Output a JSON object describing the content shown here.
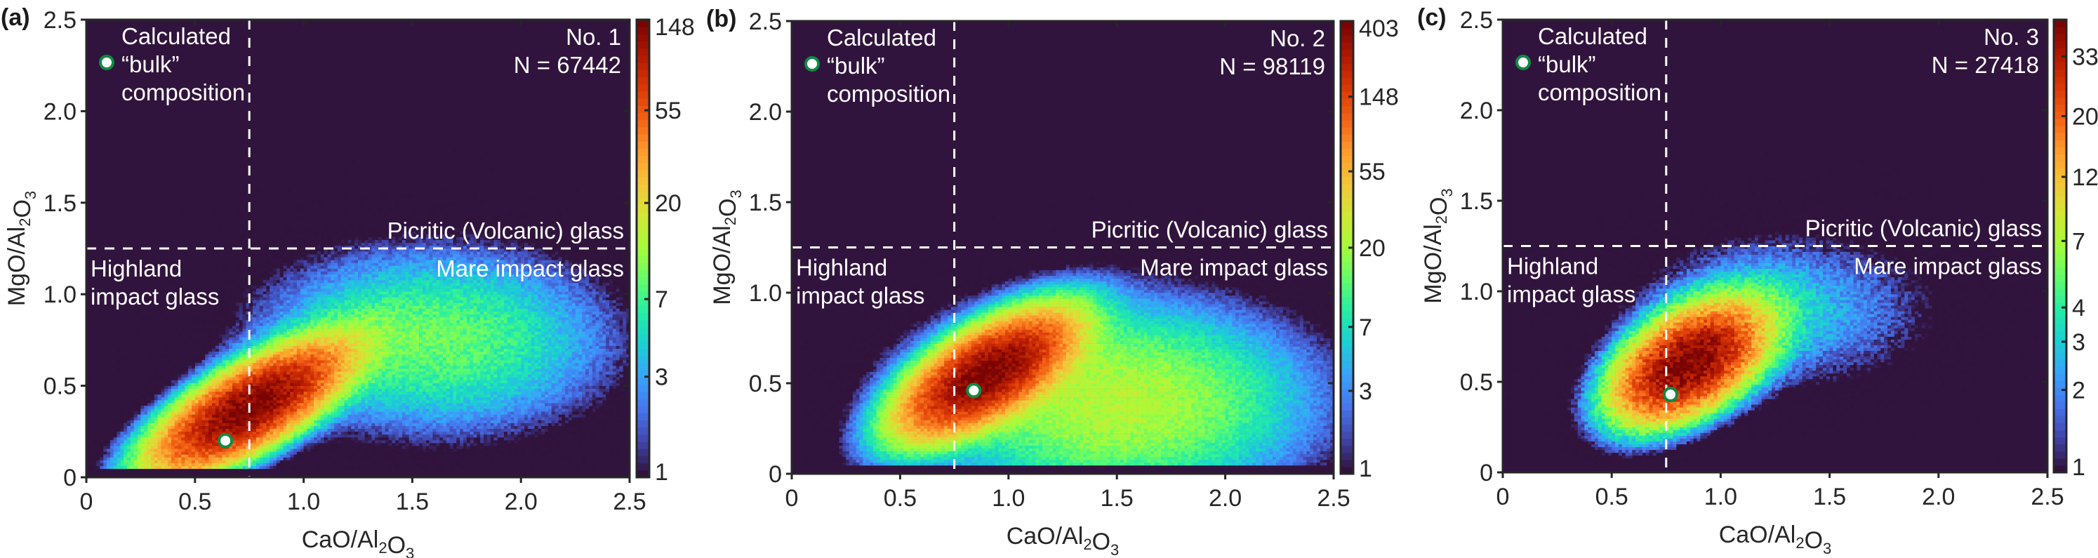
{
  "figure": {
    "background_color": "#ffffff",
    "plot_background_color": "#31143d",
    "marker_fill": "#ffffff",
    "marker_edge": "#118a43",
    "divider_color": "#ffffff",
    "colormap": [
      "#30123b",
      "#4145ab",
      "#4675ed",
      "#39a2fc",
      "#1bcfd4",
      "#24eca6",
      "#61fc6c",
      "#a4fc3b",
      "#d1e834",
      "#f3c63a",
      "#fe9b2d",
      "#f36315",
      "#d93806",
      "#b11901",
      "#7a0403"
    ]
  },
  "chart_data": [
    {
      "type": "heatmap",
      "panel_label": "(a)",
      "title": "",
      "xlabel": "CaO/Al2O3",
      "ylabel": "MgO/Al2O3",
      "xlim": [
        0,
        2.5
      ],
      "ylim": [
        0,
        2.5
      ],
      "xticks": [
        0,
        0.5,
        1.0,
        1.5,
        2.0,
        2.5
      ],
      "xtick_labels": [
        "0",
        "0.5",
        "1.0",
        "1.5",
        "2.0",
        "2.5"
      ],
      "yticks": [
        0,
        0.5,
        1.0,
        1.5,
        2.0,
        2.5
      ],
      "ytick_labels": [
        "0",
        "0.5",
        "1.0",
        "1.5",
        "2.0",
        "2.5"
      ],
      "grid": false,
      "colorbar": {
        "scale": "log",
        "range": [
          1,
          148
        ],
        "ticks": [
          148,
          55,
          20,
          7,
          3,
          1
        ],
        "tick_labels": [
          "148",
          "55",
          "20",
          "7",
          "3",
          "1"
        ]
      },
      "annotations": {
        "sample": "No. 1",
        "count": "N = 67442",
        "bulk_lines": [
          "Calculated",
          "“bulk”",
          "composition"
        ],
        "picritic": "Picritic (Volcanic) glass",
        "mare": "Mare impact glass",
        "highland_lines": [
          "Highland",
          "impact glass"
        ]
      },
      "divider_x": 0.75,
      "divider_y": 1.25,
      "bulk_composition": {
        "x": 0.64,
        "y": 0.2
      },
      "density_peak": {
        "x": 0.75,
        "y": 0.38,
        "max_count": 148
      },
      "density_shape": {
        "major_spread": 0.5,
        "minor_spread": 0.13,
        "angle_deg": 36,
        "tail_x": 1.6,
        "tail_y": 0.75
      },
      "n_points": 67442
    },
    {
      "type": "heatmap",
      "panel_label": "(b)",
      "title": "",
      "xlabel": "CaO/Al2O3",
      "ylabel": "MgO/Al2O3",
      "xlim": [
        0,
        2.5
      ],
      "ylim": [
        0,
        2.5
      ],
      "xticks": [
        0,
        0.5,
        1.0,
        1.5,
        2.0,
        2.5
      ],
      "xtick_labels": [
        "0",
        "0.5",
        "1.0",
        "1.5",
        "2.0",
        "2.5"
      ],
      "yticks": [
        0,
        0.5,
        1.0,
        1.5,
        2.0,
        2.5
      ],
      "ytick_labels": [
        "0",
        "0.5",
        "1.0",
        "1.5",
        "2.0",
        "2.5"
      ],
      "grid": false,
      "colorbar": {
        "scale": "log",
        "range": [
          1,
          403
        ],
        "ticks": [
          403,
          148,
          55,
          20,
          7,
          3,
          1
        ],
        "tick_labels": [
          "403",
          "148",
          "55",
          "20",
          "7",
          "3",
          "1"
        ]
      },
      "annotations": {
        "sample": "No. 2",
        "count": "N = 98119",
        "bulk_lines": [
          "Calculated",
          "“bulk”",
          "composition"
        ],
        "picritic": "Picritic (Volcanic) glass",
        "mare": "Mare impact glass",
        "highland_lines": [
          "Highland",
          "impact glass"
        ]
      },
      "divider_x": 0.75,
      "divider_y": 1.25,
      "bulk_composition": {
        "x": 0.84,
        "y": 0.46
      },
      "density_peak": {
        "x": 0.9,
        "y": 0.55,
        "max_count": 403
      },
      "density_shape": {
        "major_spread": 0.42,
        "minor_spread": 0.13,
        "angle_deg": 38,
        "tail_x": 1.5,
        "tail_y": 0.4
      },
      "n_points": 98119
    },
    {
      "type": "heatmap",
      "panel_label": "(c)",
      "title": "",
      "xlabel": "CaO/Al2O3",
      "ylabel": "MgO/Al2O3",
      "xlim": [
        0,
        2.5
      ],
      "ylim": [
        0,
        2.5
      ],
      "xticks": [
        0,
        0.5,
        1.0,
        1.5,
        2.0,
        2.5
      ],
      "xtick_labels": [
        "0",
        "0.5",
        "1.0",
        "1.5",
        "2.0",
        "2.5"
      ],
      "yticks": [
        0,
        0.5,
        1.0,
        1.5,
        2.0,
        2.5
      ],
      "ytick_labels": [
        "0",
        "0.5",
        "1.0",
        "1.5",
        "2.0",
        "2.5"
      ],
      "grid": false,
      "colorbar": {
        "scale": "log",
        "range": [
          1,
          45
        ],
        "ticks": [
          33,
          20,
          12,
          7,
          4,
          3,
          2,
          1
        ],
        "tick_labels": [
          "33",
          "20",
          "12",
          "7",
          "4",
          "3",
          "2",
          "1"
        ]
      },
      "annotations": {
        "sample": "No. 3",
        "count": "N = 27418",
        "bulk_lines": [
          "Calculated",
          "“bulk”",
          "composition"
        ],
        "picritic": "Picritic (Volcanic) glass",
        "mare": "Mare impact glass",
        "highland_lines": [
          "Highland",
          "impact glass"
        ]
      },
      "divider_x": 0.75,
      "divider_y": 1.25,
      "bulk_composition": {
        "x": 0.77,
        "y": 0.43
      },
      "density_peak": {
        "x": 0.85,
        "y": 0.6,
        "max_count": 45
      },
      "density_shape": {
        "major_spread": 0.42,
        "minor_spread": 0.17,
        "angle_deg": 42,
        "tail_x": 1.3,
        "tail_y": 0.9
      },
      "n_points": 27418
    }
  ]
}
